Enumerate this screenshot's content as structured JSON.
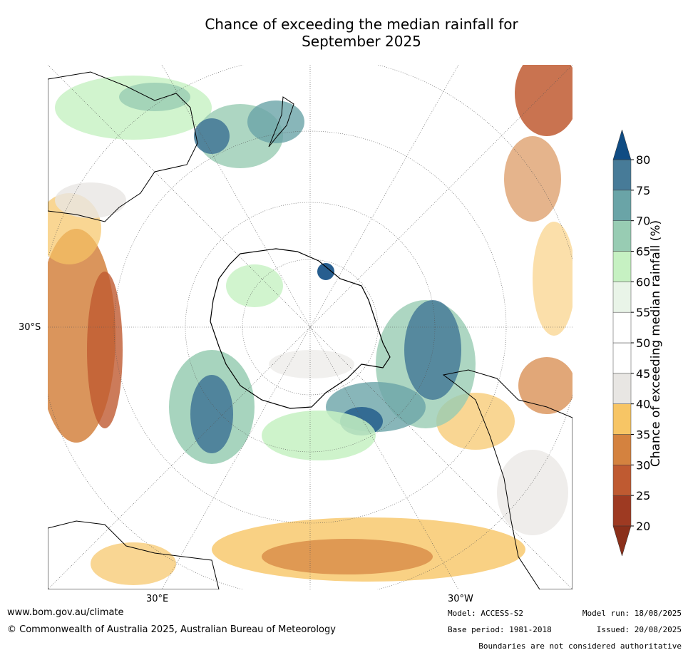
{
  "title": {
    "line1": "Chance of exceeding the median rainfall for",
    "line2": "September 2025"
  },
  "map": {
    "grid_labels": {
      "lat_30s": "30°S",
      "lon_30e": "30°E",
      "lon_30w": "30°W"
    }
  },
  "colorbar": {
    "label": "Chance of exceeding median rainfall (%)",
    "ticks": [
      "20",
      "25",
      "30",
      "35",
      "40",
      "45",
      "50",
      "55",
      "60",
      "65",
      "70",
      "75",
      "80"
    ],
    "colors": [
      "#9e3a22",
      "#bf5a31",
      "#d4823f",
      "#f7c565",
      "#e8e6e3",
      "#ffffff",
      "#ffffff",
      "#e9f4e8",
      "#c6f1c2",
      "#98ccb3",
      "#6aa4a7",
      "#477b98",
      "#104c83"
    ],
    "under_color": "#8a2f1a",
    "over_color": "#104c83"
  },
  "footer": {
    "website": "www.bom.gov.au/climate",
    "copyright": "© Commonwealth of Australia 2025, Australian Bureau of Meteorology",
    "model": "Model: ACCESS-S2",
    "base_period": "Base period: 1981-2018",
    "model_run": "Model run: 18/08/2025",
    "issued": "Issued: 20/08/2025",
    "disclaimer": "Boundaries are not considered authoritative"
  }
}
